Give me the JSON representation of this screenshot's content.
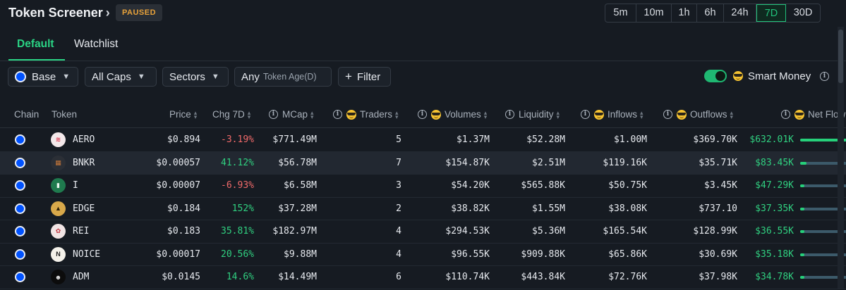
{
  "header": {
    "title": "Token Screener",
    "badge": "PAUSED",
    "timeframes": [
      "5m",
      "10m",
      "1h",
      "6h",
      "24h",
      "7D",
      "30D"
    ],
    "active_timeframe": "7D"
  },
  "tabs": [
    {
      "label": "Default",
      "active": true
    },
    {
      "label": "Watchlist",
      "active": false
    }
  ],
  "filters": {
    "chain": "Base",
    "caps": "All Caps",
    "sectors": "Sectors",
    "age_label": "Any",
    "age_sub": "Token Age(D)",
    "filter_button": "Filter",
    "smart_money_label": "Smart Money",
    "smart_money_on": true
  },
  "columns": {
    "chain": "Chain",
    "token": "Token",
    "price": "Price",
    "chg": "Chg 7D",
    "mcap": "MCap",
    "traders": "Traders",
    "volumes": "Volumes",
    "liquidity": "Liquidity",
    "inflows": "Inflows",
    "outflows": "Outflows",
    "netflow": "Net Flow"
  },
  "rows": [
    {
      "token": "AERO",
      "price": "$0.894",
      "chg": "-3.19%",
      "chg_dir": "neg",
      "mcap": "$771.49M",
      "traders": "5",
      "volumes": "$1.37M",
      "liquidity": "$52.28M",
      "inflows": "$1.00M",
      "outflows": "$369.70K",
      "netflow": "$632.01K",
      "net_fraction": 1.0
    },
    {
      "token": "BNKR",
      "price": "$0.00057",
      "chg": "41.12%",
      "chg_dir": "pos",
      "mcap": "$56.78M",
      "traders": "7",
      "volumes": "$154.87K",
      "liquidity": "$2.51M",
      "inflows": "$119.16K",
      "outflows": "$35.71K",
      "netflow": "$83.45K",
      "net_fraction": 0.13
    },
    {
      "token": "I",
      "price": "$0.00007",
      "chg": "-6.93%",
      "chg_dir": "neg",
      "mcap": "$6.58M",
      "traders": "3",
      "volumes": "$54.20K",
      "liquidity": "$565.88K",
      "inflows": "$50.75K",
      "outflows": "$3.45K",
      "netflow": "$47.29K",
      "net_fraction": 0.075
    },
    {
      "token": "EDGE",
      "price": "$0.184",
      "chg": "152%",
      "chg_dir": "pos",
      "mcap": "$37.28M",
      "traders": "2",
      "volumes": "$38.82K",
      "liquidity": "$1.55M",
      "inflows": "$38.08K",
      "outflows": "$737.10",
      "netflow": "$37.35K",
      "net_fraction": 0.06
    },
    {
      "token": "REI",
      "price": "$0.183",
      "chg": "35.81%",
      "chg_dir": "pos",
      "mcap": "$182.97M",
      "traders": "4",
      "volumes": "$294.53K",
      "liquidity": "$5.36M",
      "inflows": "$165.54K",
      "outflows": "$128.99K",
      "netflow": "$36.55K",
      "net_fraction": 0.058
    },
    {
      "token": "NOICE",
      "price": "$0.00017",
      "chg": "20.56%",
      "chg_dir": "pos",
      "mcap": "$9.88M",
      "traders": "4",
      "volumes": "$96.55K",
      "liquidity": "$909.88K",
      "inflows": "$65.86K",
      "outflows": "$30.69K",
      "netflow": "$35.18K",
      "net_fraction": 0.056
    },
    {
      "token": "ADM",
      "price": "$0.0145",
      "chg": "14.6%",
      "chg_dir": "pos",
      "mcap": "$14.49M",
      "traders": "6",
      "volumes": "$110.74K",
      "liquidity": "$443.84K",
      "inflows": "$72.76K",
      "outflows": "$37.98K",
      "netflow": "$34.78K",
      "net_fraction": 0.055
    }
  ],
  "colors": {
    "accent": "#2ad384",
    "negative": "#f06a6a",
    "positive": "#30d080",
    "paused": "#e8a23a"
  }
}
